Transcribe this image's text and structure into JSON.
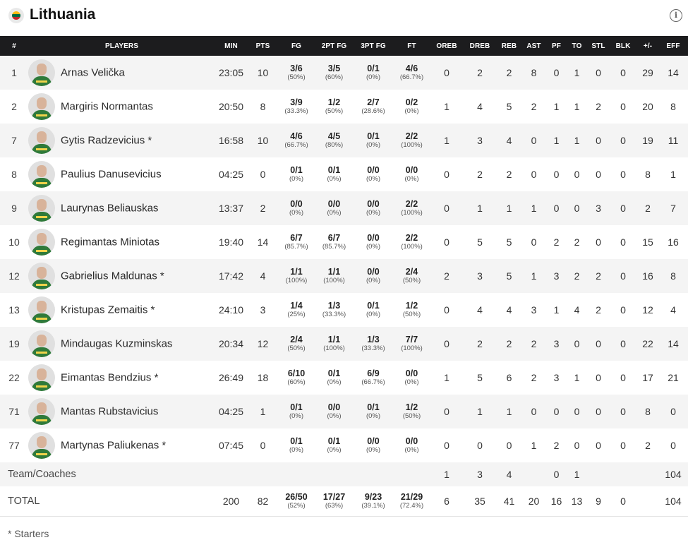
{
  "team": {
    "name": "Lithuania",
    "flag_colors": [
      "#FDB913",
      "#006A44",
      "#C1272D"
    ]
  },
  "info_icon": "info-icon",
  "columns": [
    "#",
    "PLAYERS",
    "MIN",
    "PTS",
    "FG",
    "2PT FG",
    "3PT FG",
    "FT",
    "OREB",
    "DREB",
    "REB",
    "AST",
    "PF",
    "TO",
    "STL",
    "BLK",
    "+/-",
    "EFF"
  ],
  "players": [
    {
      "num": "1",
      "name": "Arnas Velička",
      "min": "23:05",
      "pts": "10",
      "fg": "3/6",
      "fg_pct": "(50%)",
      "fg2": "3/5",
      "fg2_pct": "(60%)",
      "fg3": "0/1",
      "fg3_pct": "(0%)",
      "ft": "4/6",
      "ft_pct": "(66.7%)",
      "oreb": "0",
      "dreb": "2",
      "reb": "2",
      "ast": "8",
      "pf": "0",
      "to": "1",
      "stl": "0",
      "blk": "0",
      "pm": "29",
      "eff": "14"
    },
    {
      "num": "2",
      "name": "Margiris Normantas",
      "min": "20:50",
      "pts": "8",
      "fg": "3/9",
      "fg_pct": "(33.3%)",
      "fg2": "1/2",
      "fg2_pct": "(50%)",
      "fg3": "2/7",
      "fg3_pct": "(28.6%)",
      "ft": "0/2",
      "ft_pct": "(0%)",
      "oreb": "1",
      "dreb": "4",
      "reb": "5",
      "ast": "2",
      "pf": "1",
      "to": "1",
      "stl": "2",
      "blk": "0",
      "pm": "20",
      "eff": "8"
    },
    {
      "num": "7",
      "name": "Gytis Radzevicius *",
      "min": "16:58",
      "pts": "10",
      "fg": "4/6",
      "fg_pct": "(66.7%)",
      "fg2": "4/5",
      "fg2_pct": "(80%)",
      "fg3": "0/1",
      "fg3_pct": "(0%)",
      "ft": "2/2",
      "ft_pct": "(100%)",
      "oreb": "1",
      "dreb": "3",
      "reb": "4",
      "ast": "0",
      "pf": "1",
      "to": "1",
      "stl": "0",
      "blk": "0",
      "pm": "19",
      "eff": "11"
    },
    {
      "num": "8",
      "name": "Paulius Danusevicius",
      "min": "04:25",
      "pts": "0",
      "fg": "0/1",
      "fg_pct": "(0%)",
      "fg2": "0/1",
      "fg2_pct": "(0%)",
      "fg3": "0/0",
      "fg3_pct": "(0%)",
      "ft": "0/0",
      "ft_pct": "(0%)",
      "oreb": "0",
      "dreb": "2",
      "reb": "2",
      "ast": "0",
      "pf": "0",
      "to": "0",
      "stl": "0",
      "blk": "0",
      "pm": "8",
      "eff": "1"
    },
    {
      "num": "9",
      "name": "Laurynas Beliauskas",
      "min": "13:37",
      "pts": "2",
      "fg": "0/0",
      "fg_pct": "(0%)",
      "fg2": "0/0",
      "fg2_pct": "(0%)",
      "fg3": "0/0",
      "fg3_pct": "(0%)",
      "ft": "2/2",
      "ft_pct": "(100%)",
      "oreb": "0",
      "dreb": "1",
      "reb": "1",
      "ast": "1",
      "pf": "0",
      "to": "0",
      "stl": "3",
      "blk": "0",
      "pm": "2",
      "eff": "7"
    },
    {
      "num": "10",
      "name": "Regimantas Miniotas",
      "min": "19:40",
      "pts": "14",
      "fg": "6/7",
      "fg_pct": "(85.7%)",
      "fg2": "6/7",
      "fg2_pct": "(85.7%)",
      "fg3": "0/0",
      "fg3_pct": "(0%)",
      "ft": "2/2",
      "ft_pct": "(100%)",
      "oreb": "0",
      "dreb": "5",
      "reb": "5",
      "ast": "0",
      "pf": "2",
      "to": "2",
      "stl": "0",
      "blk": "0",
      "pm": "15",
      "eff": "16"
    },
    {
      "num": "12",
      "name": "Gabrielius Maldunas *",
      "min": "17:42",
      "pts": "4",
      "fg": "1/1",
      "fg_pct": "(100%)",
      "fg2": "1/1",
      "fg2_pct": "(100%)",
      "fg3": "0/0",
      "fg3_pct": "(0%)",
      "ft": "2/4",
      "ft_pct": "(50%)",
      "oreb": "2",
      "dreb": "3",
      "reb": "5",
      "ast": "1",
      "pf": "3",
      "to": "2",
      "stl": "2",
      "blk": "0",
      "pm": "16",
      "eff": "8"
    },
    {
      "num": "13",
      "name": "Kristupas Zemaitis *",
      "min": "24:10",
      "pts": "3",
      "fg": "1/4",
      "fg_pct": "(25%)",
      "fg2": "1/3",
      "fg2_pct": "(33.3%)",
      "fg3": "0/1",
      "fg3_pct": "(0%)",
      "ft": "1/2",
      "ft_pct": "(50%)",
      "oreb": "0",
      "dreb": "4",
      "reb": "4",
      "ast": "3",
      "pf": "1",
      "to": "4",
      "stl": "2",
      "blk": "0",
      "pm": "12",
      "eff": "4"
    },
    {
      "num": "19",
      "name": "Mindaugas Kuzminskas",
      "min": "20:34",
      "pts": "12",
      "fg": "2/4",
      "fg_pct": "(50%)",
      "fg2": "1/1",
      "fg2_pct": "(100%)",
      "fg3": "1/3",
      "fg3_pct": "(33.3%)",
      "ft": "7/7",
      "ft_pct": "(100%)",
      "oreb": "0",
      "dreb": "2",
      "reb": "2",
      "ast": "2",
      "pf": "3",
      "to": "0",
      "stl": "0",
      "blk": "0",
      "pm": "22",
      "eff": "14"
    },
    {
      "num": "22",
      "name": "Eimantas Bendzius *",
      "min": "26:49",
      "pts": "18",
      "fg": "6/10",
      "fg_pct": "(60%)",
      "fg2": "0/1",
      "fg2_pct": "(0%)",
      "fg3": "6/9",
      "fg3_pct": "(66.7%)",
      "ft": "0/0",
      "ft_pct": "(0%)",
      "oreb": "1",
      "dreb": "5",
      "reb": "6",
      "ast": "2",
      "pf": "3",
      "to": "1",
      "stl": "0",
      "blk": "0",
      "pm": "17",
      "eff": "21"
    },
    {
      "num": "71",
      "name": "Mantas Rubstavicius",
      "min": "04:25",
      "pts": "1",
      "fg": "0/1",
      "fg_pct": "(0%)",
      "fg2": "0/0",
      "fg2_pct": "(0%)",
      "fg3": "0/1",
      "fg3_pct": "(0%)",
      "ft": "1/2",
      "ft_pct": "(50%)",
      "oreb": "0",
      "dreb": "1",
      "reb": "1",
      "ast": "0",
      "pf": "0",
      "to": "0",
      "stl": "0",
      "blk": "0",
      "pm": "8",
      "eff": "0"
    },
    {
      "num": "77",
      "name": "Martynas Paliukenas *",
      "min": "07:45",
      "pts": "0",
      "fg": "0/1",
      "fg_pct": "(0%)",
      "fg2": "0/1",
      "fg2_pct": "(0%)",
      "fg3": "0/0",
      "fg3_pct": "(0%)",
      "ft": "0/0",
      "ft_pct": "(0%)",
      "oreb": "0",
      "dreb": "0",
      "reb": "0",
      "ast": "1",
      "pf": "2",
      "to": "0",
      "stl": "0",
      "blk": "0",
      "pm": "2",
      "eff": "0"
    }
  ],
  "team_coaches": {
    "label": "Team/Coaches",
    "oreb": "1",
    "dreb": "3",
    "reb": "4",
    "ast": "",
    "pf": "0",
    "to": "1",
    "stl": "",
    "blk": "",
    "pm": "",
    "eff": "104"
  },
  "totals": {
    "label": "TOTAL",
    "min": "200",
    "pts": "82",
    "fg": "26/50",
    "fg_pct": "(52%)",
    "fg2": "17/27",
    "fg2_pct": "(63%)",
    "fg3": "9/23",
    "fg3_pct": "(39.1%)",
    "ft": "21/29",
    "ft_pct": "(72.4%)",
    "oreb": "6",
    "dreb": "35",
    "reb": "41",
    "ast": "20",
    "pf": "16",
    "to": "13",
    "stl": "9",
    "blk": "0",
    "pm": "",
    "eff": "104"
  },
  "footnote": "* Starters"
}
